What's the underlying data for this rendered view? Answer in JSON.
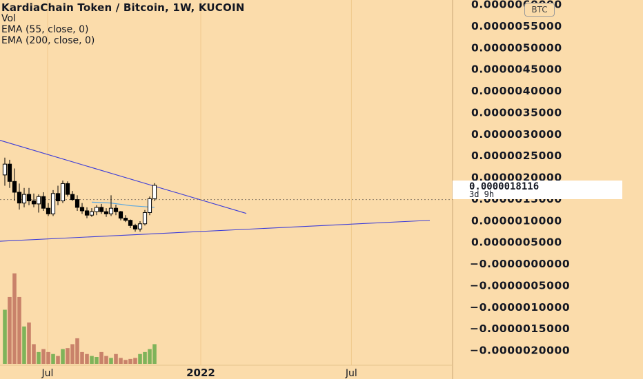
{
  "legend": {
    "title": "KardiaChain Token / Bitcoin, 1W, KUCOIN",
    "indicators": [
      "Vol",
      "EMA (55, close, 0)",
      "EMA (200, close, 0)"
    ]
  },
  "currency_button": "BTC",
  "price_tag": {
    "value": "0.0000018116",
    "countdown": "3d 9h"
  },
  "colors": {
    "background": "#fbdcab",
    "grid": "#f0c98c",
    "trendline": "#3d3dd8",
    "ema": "#5aa7e0",
    "vol_up": "#7fb35a",
    "vol_down": "#c9826a",
    "candle": "#000000"
  },
  "chart_data": {
    "type": "candlestick",
    "title": "KardiaChain Token / Bitcoin, 1W, KUCOIN",
    "y_axis": {
      "ticks": [
        "0.0000060000",
        "0.0000055000",
        "0.0000050000",
        "0.0000045000",
        "0.0000040000",
        "0.0000035000",
        "0.0000030000",
        "0.0000025000",
        "0.0000020000",
        "0.0000015000",
        "0.0000010000",
        "0.0000005000",
        "−0.0000000000",
        "−0.0000005000",
        "−0.0000010000",
        "−0.0000015000",
        "−0.0000020000"
      ],
      "range": [
        -2.1e-06,
        6e-06
      ]
    },
    "x_axis": {
      "ticks": [
        {
          "label": "Jul",
          "date": "2021-07-01",
          "bold": false
        },
        {
          "label": "2022",
          "date": "2022-01-01",
          "bold": true
        },
        {
          "label": "Jul",
          "date": "2022-07-01",
          "bold": false
        }
      ],
      "grid": true
    },
    "candles": [
      {
        "o": 2.05e-06,
        "h": 2.45e-06,
        "l": 1.8e-06,
        "c": 2.3e-06
      },
      {
        "o": 2.3e-06,
        "h": 2.4e-06,
        "l": 1.75e-06,
        "c": 1.9e-06
      },
      {
        "o": 1.9e-06,
        "h": 2.2e-06,
        "l": 1.45e-06,
        "c": 1.65e-06
      },
      {
        "o": 1.65e-06,
        "h": 1.85e-06,
        "l": 1.25e-06,
        "c": 1.4e-06
      },
      {
        "o": 1.4e-06,
        "h": 1.75e-06,
        "l": 1.3e-06,
        "c": 1.6e-06
      },
      {
        "o": 1.6e-06,
        "h": 1.75e-06,
        "l": 1.35e-06,
        "c": 1.45e-06
      },
      {
        "o": 1.45e-06,
        "h": 1.62e-06,
        "l": 1.3e-06,
        "c": 1.38e-06
      },
      {
        "o": 1.38e-06,
        "h": 1.6e-06,
        "l": 1.18e-06,
        "c": 1.55e-06
      },
      {
        "o": 1.55e-06,
        "h": 1.65e-06,
        "l": 1.22e-06,
        "c": 1.28e-06
      },
      {
        "o": 1.28e-06,
        "h": 1.4e-06,
        "l": 1.1e-06,
        "c": 1.15e-06
      },
      {
        "o": 1.15e-06,
        "h": 1.7e-06,
        "l": 1.1e-06,
        "c": 1.62e-06
      },
      {
        "o": 1.62e-06,
        "h": 1.8e-06,
        "l": 1.35e-06,
        "c": 1.45e-06
      },
      {
        "o": 1.45e-06,
        "h": 1.92e-06,
        "l": 1.4e-06,
        "c": 1.85e-06
      },
      {
        "o": 1.85e-06,
        "h": 1.9e-06,
        "l": 1.55e-06,
        "c": 1.6e-06
      },
      {
        "o": 1.6e-06,
        "h": 1.68e-06,
        "l": 1.45e-06,
        "c": 1.48e-06
      },
      {
        "o": 1.48e-06,
        "h": 1.58e-06,
        "l": 1.22e-06,
        "c": 1.3e-06
      },
      {
        "o": 1.3e-06,
        "h": 1.4e-06,
        "l": 1.15e-06,
        "c": 1.22e-06
      },
      {
        "o": 1.22e-06,
        "h": 1.3e-06,
        "l": 1.05e-06,
        "c": 1.12e-06
      },
      {
        "o": 1.12e-06,
        "h": 1.28e-06,
        "l": 1.08e-06,
        "c": 1.2e-06
      },
      {
        "o": 1.2e-06,
        "h": 1.35e-06,
        "l": 1.12e-06,
        "c": 1.3e-06
      },
      {
        "o": 1.3e-06,
        "h": 1.38e-06,
        "l": 1.15e-06,
        "c": 1.2e-06
      },
      {
        "o": 1.2e-06,
        "h": 1.28e-06,
        "l": 1.08e-06,
        "c": 1.15e-06
      },
      {
        "o": 1.15e-06,
        "h": 1.58e-06,
        "l": 1.1e-06,
        "c": 1.28e-06
      },
      {
        "o": 1.28e-06,
        "h": 1.36e-06,
        "l": 1.12e-06,
        "c": 1.2e-06
      },
      {
        "o": 1.2e-06,
        "h": 1.22e-06,
        "l": 1e-06,
        "c": 1.05e-06
      },
      {
        "o": 1.05e-06,
        "h": 1.12e-06,
        "l": 9.6e-07,
        "c": 1e-06
      },
      {
        "o": 1e-06,
        "h": 1.02e-06,
        "l": 8.2e-07,
        "c": 8.8e-07
      },
      {
        "o": 8.8e-07,
        "h": 9.2e-07,
        "l": 7.4e-07,
        "c": 8e-07
      },
      {
        "o": 8e-07,
        "h": 9.8e-07,
        "l": 7.4e-07,
        "c": 9.2e-07
      },
      {
        "o": 9.2e-07,
        "h": 1.24e-06,
        "l": 8.8e-07,
        "c": 1.18e-06
      },
      {
        "o": 1.18e-06,
        "h": 1.55e-06,
        "l": 1.12e-06,
        "c": 1.5e-06
      },
      {
        "o": 1.5e-06,
        "h": 1.86e-06,
        "l": 1.45e-06,
        "c": 1.81e-06
      }
    ],
    "volume_relative": [
      0.55,
      0.68,
      0.92,
      0.68,
      0.38,
      0.42,
      0.2,
      0.12,
      0.15,
      0.12,
      0.1,
      0.08,
      0.15,
      0.16,
      0.2,
      0.26,
      0.12,
      0.1,
      0.08,
      0.07,
      0.12,
      0.08,
      0.06,
      0.1,
      0.06,
      0.04,
      0.05,
      0.06,
      0.1,
      0.12,
      0.15,
      0.2
    ],
    "ema_line": [
      [
        18,
        1.42e-06
      ],
      [
        22,
        1.4e-06
      ],
      [
        26,
        1.34e-06
      ],
      [
        31,
        1.3e-06
      ]
    ],
    "ema_line_start_x": 18,
    "trendlines": [
      {
        "from": [
          -4,
          2.95e-06
        ],
        "to": [
          50,
          1.16e-06
        ]
      },
      {
        "from": [
          -4,
          5e-07
        ],
        "to": [
          88,
          1e-06
        ]
      }
    ],
    "last_price": 1.8116e-06
  }
}
